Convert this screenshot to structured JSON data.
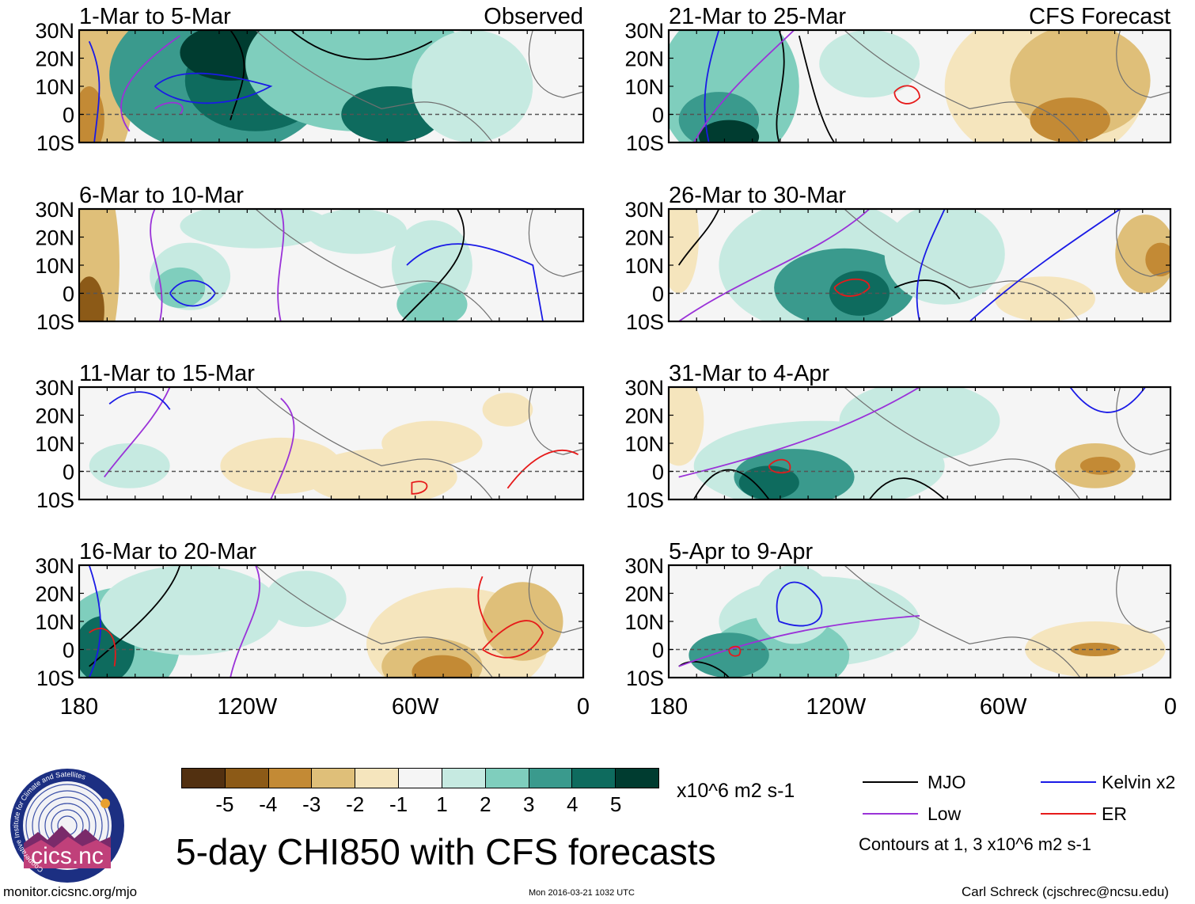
{
  "map_panels": {
    "observed": [
      {
        "period": "1-Mar to 5-Mar",
        "tag": "Observed"
      },
      {
        "period": "6-Mar to 10-Mar"
      },
      {
        "period": "11-Mar to 15-Mar"
      },
      {
        "period": "16-Mar to 20-Mar"
      }
    ],
    "forecast": [
      {
        "period": "21-Mar to 25-Mar",
        "tag": "CFS Forecast"
      },
      {
        "period": "26-Mar to 30-Mar"
      },
      {
        "period": "31-Mar to 4-Apr"
      },
      {
        "period": "5-Apr to 9-Apr"
      }
    ]
  },
  "axes": {
    "lat_labels": [
      "30N",
      "20N",
      "10N",
      "0",
      "10S"
    ],
    "lon_labels": [
      "180",
      "120W",
      "60W",
      "0"
    ]
  },
  "colorbar": {
    "labels": [
      "-5",
      "-4",
      "-3",
      "-2",
      "-1",
      "1",
      "2",
      "3",
      "4",
      "5"
    ],
    "colors": [
      "#523010",
      "#8c5a17",
      "#c38a35",
      "#dfbf79",
      "#f5e5bd",
      "#f5f5f5",
      "#c6eae1",
      "#7fcebd",
      "#3a9a8d",
      "#0e6b5e",
      "#003c30"
    ],
    "units": "x10^6 m2 s-1"
  },
  "legend": {
    "items": [
      {
        "label": "MJO",
        "color": "#000000"
      },
      {
        "label": "Kelvin x2",
        "color": "#1a1ae6"
      },
      {
        "label": "Low",
        "color": "#9a32d8"
      },
      {
        "label": "ER",
        "color": "#e61a1a"
      }
    ],
    "note": "Contours at 1, 3 x10^6 m2 s-1"
  },
  "logo": {
    "text": "cics.nc",
    "ring_text": "Cooperative Institute for Climate and Satellites"
  },
  "main_title": "5-day CHI850 with CFS forecasts",
  "footer": {
    "url": "monitor.cicsnc.org/mjo",
    "timestamp": "Mon 2016-03-21 1032 UTC",
    "credit": "Carl Schreck (cjschrec@ncsu.edu)"
  }
}
